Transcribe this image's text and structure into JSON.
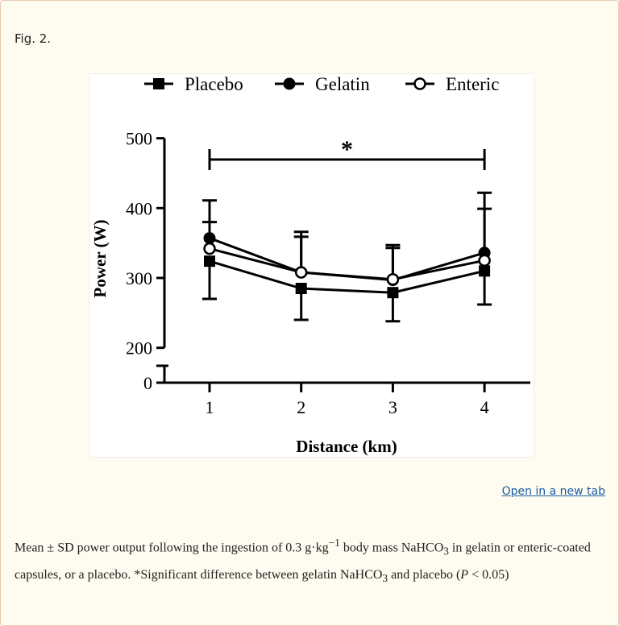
{
  "figure_label": "Fig. 2.",
  "open_link": "Open in a new tab",
  "caption": {
    "p1": "Mean ± SD power output following the ingestion of 0.3  g·kg",
    "sup1": "−1",
    "p2": " body mass NaHCO",
    "sub1": "3",
    "p3": " in gelatin or enteric-coated capsules, or a placebo. *Significant difference between gelatin NaHCO",
    "sub2": "3",
    "p4": " and placebo (",
    "italic_p": "P",
    "p5": " < 0.05)"
  },
  "chart_data": {
    "type": "line",
    "xlabel": "Distance (km)",
    "ylabel": "Power (W)",
    "x": [
      1,
      2,
      3,
      4
    ],
    "x_ticks": [
      "1",
      "2",
      "3",
      "4"
    ],
    "y_ticks": [
      "0",
      "200",
      "300",
      "400",
      "500"
    ],
    "ylim": [
      0,
      500
    ],
    "y_axis_break": [
      0,
      200
    ],
    "grid": false,
    "legend_position": "top",
    "significance": {
      "label": "*",
      "from_x": 1,
      "to_x": 4
    },
    "series": [
      {
        "name": "Placebo",
        "marker": "filled-square",
        "values": [
          324,
          285,
          279,
          310
        ],
        "sd": [
          54,
          45,
          41,
          48
        ],
        "error_direction": "down"
      },
      {
        "name": "Gelatin",
        "marker": "filled-circle",
        "values": [
          357,
          308,
          297,
          336
        ],
        "sd": [
          54,
          58,
          50,
          86
        ],
        "error_direction": "up"
      },
      {
        "name": "Enteric",
        "marker": "open-circle",
        "values": [
          342,
          308,
          298,
          325
        ],
        "sd": [
          38,
          51,
          45,
          74
        ],
        "error_direction": "up"
      }
    ]
  }
}
